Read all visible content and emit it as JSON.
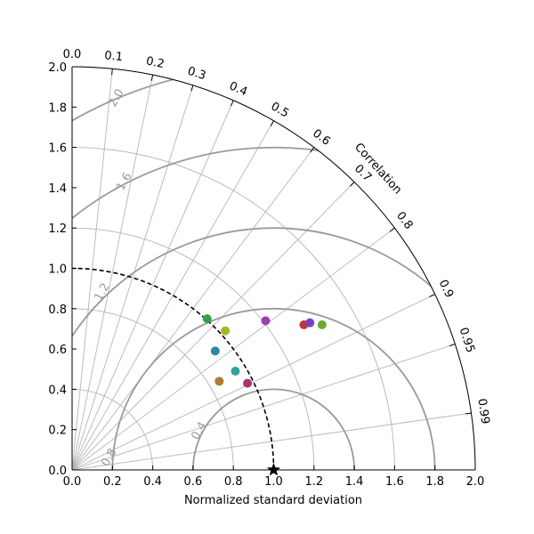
{
  "chart_data": {
    "type": "scatter",
    "subtype": "taylor-diagram",
    "xlabel": "Normalized standard deviation",
    "corr_label": "Correlation",
    "xlim": [
      0,
      2.0
    ],
    "ylim": [
      0,
      2.0
    ],
    "std_ticks": [
      "0.0",
      "0.2",
      "0.4",
      "0.6",
      "0.8",
      "1.0",
      "1.2",
      "1.4",
      "1.6",
      "1.8",
      "2.0"
    ],
    "corr_ticks": [
      "0.0",
      "0.1",
      "0.2",
      "0.3",
      "0.4",
      "0.5",
      "0.6",
      "0.7",
      "0.8",
      "0.9",
      "0.95",
      "0.99"
    ],
    "std_arc_levels": [
      0.4,
      0.8,
      1.2,
      1.6,
      2.0
    ],
    "std_arc_labels": [
      "0.4",
      "0.8",
      "1.2",
      "1.6",
      "2.0"
    ],
    "rms_levels": [
      0.4,
      0.8,
      1.2,
      1.6,
      2.0
    ],
    "reference": {
      "std": 1.0,
      "corr": 1.0,
      "marker": "star"
    },
    "points": [
      {
        "x": 0.67,
        "y": 0.75,
        "color": "#3a9d4a"
      },
      {
        "x": 0.76,
        "y": 0.69,
        "color": "#a8b62a"
      },
      {
        "x": 0.71,
        "y": 0.59,
        "color": "#2e86ab"
      },
      {
        "x": 0.81,
        "y": 0.49,
        "color": "#2fa39a"
      },
      {
        "x": 0.73,
        "y": 0.44,
        "color": "#b07a33"
      },
      {
        "x": 0.87,
        "y": 0.43,
        "color": "#a8336d"
      },
      {
        "x": 0.96,
        "y": 0.74,
        "color": "#9b3fb5"
      },
      {
        "x": 1.15,
        "y": 0.72,
        "color": "#b83a3a"
      },
      {
        "x": 1.18,
        "y": 0.73,
        "color": "#7d3fc0"
      },
      {
        "x": 1.24,
        "y": 0.72,
        "color": "#6aaa30"
      }
    ]
  }
}
